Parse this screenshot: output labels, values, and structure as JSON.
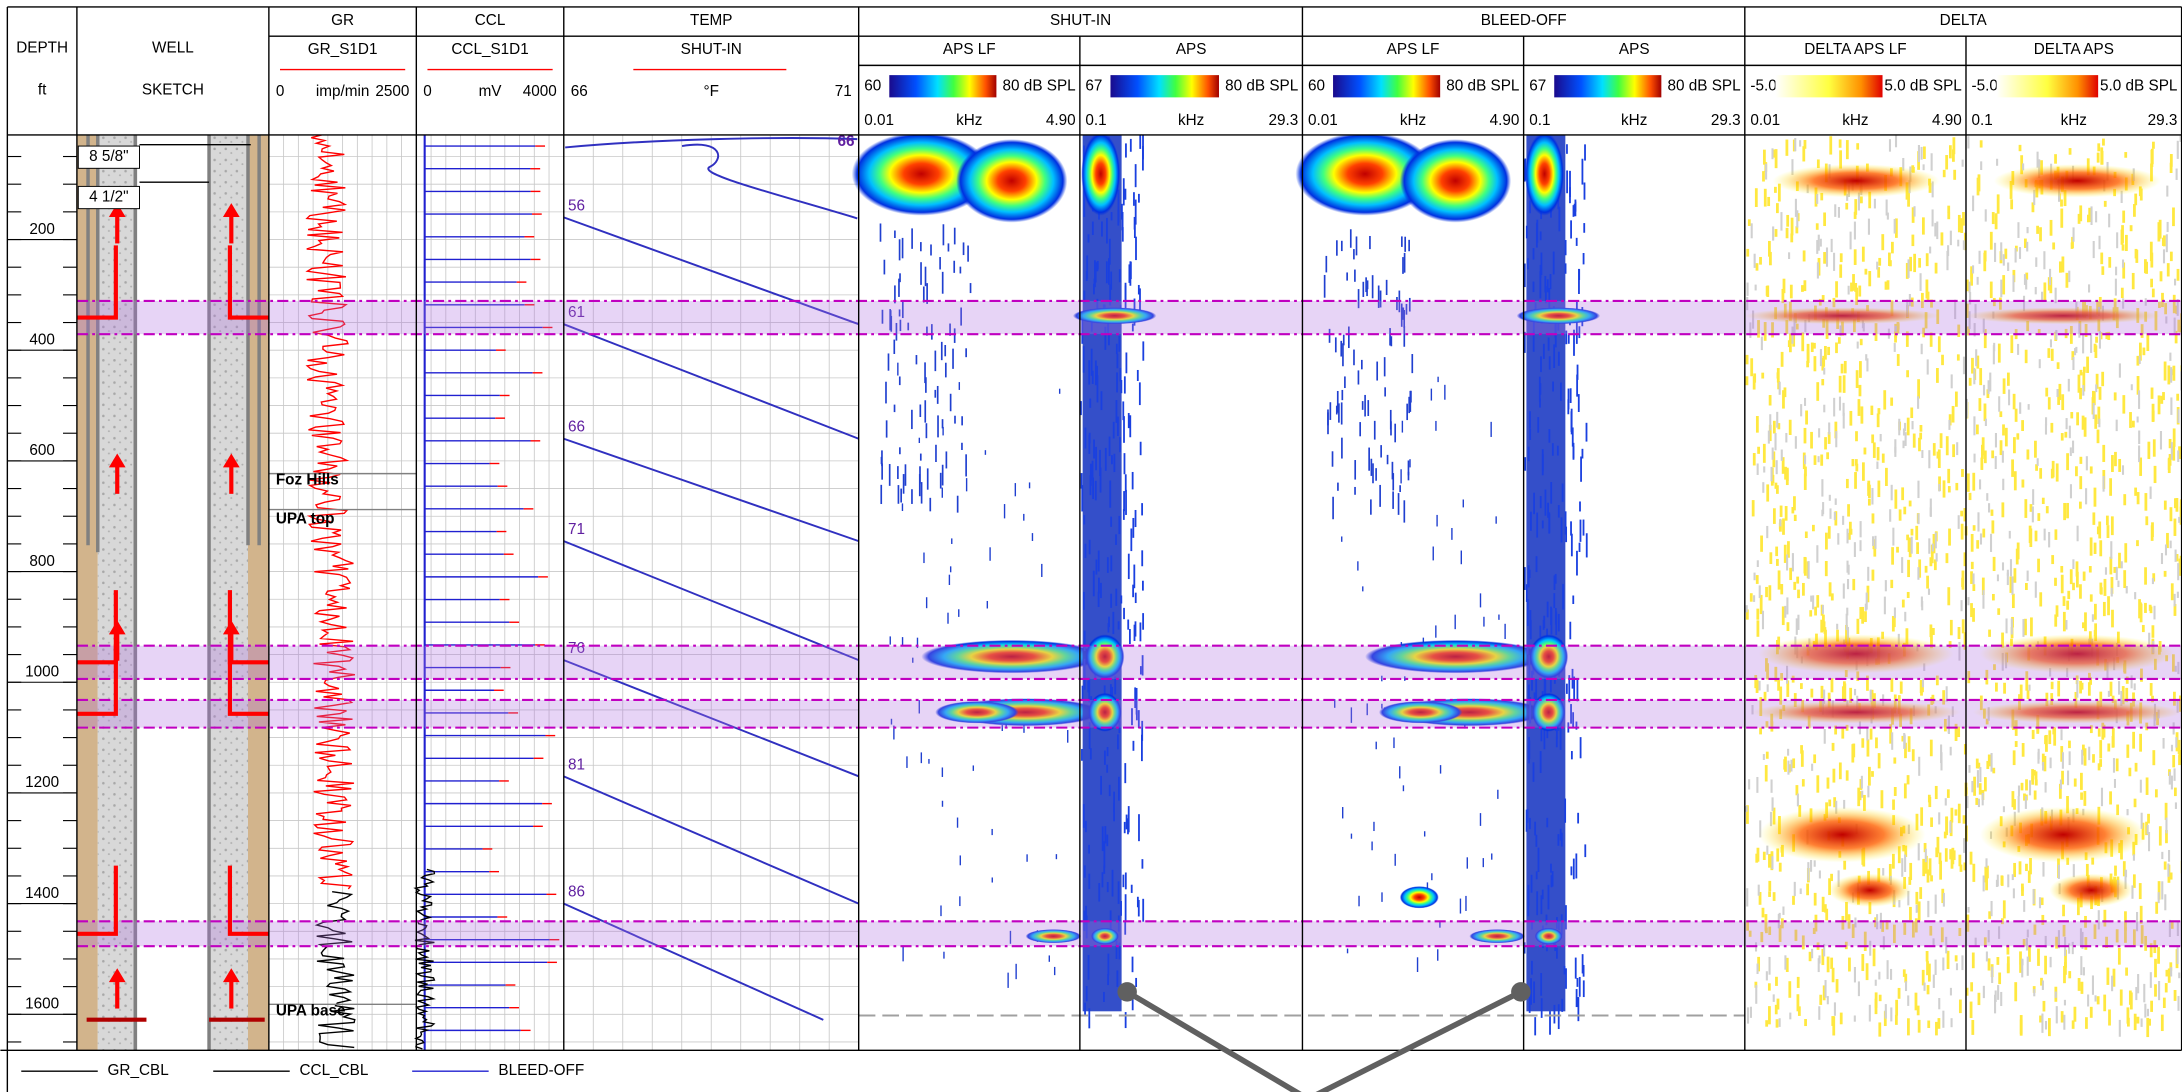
{
  "depth_header": {
    "title": "DEPTH",
    "unit": "ft"
  },
  "well_header": {
    "title": "WELL",
    "subtitle": "SKETCH"
  },
  "gr": {
    "title": "GR",
    "curve": "GR_S1D1",
    "min": "0",
    "unit": "imp/min",
    "max": "2500"
  },
  "ccl": {
    "title": "CCL",
    "curve": "CCL_S1D1",
    "min": "0",
    "unit": "mV",
    "max": "4000"
  },
  "temp": {
    "title": "TEMP",
    "curve": "SHUT-IN",
    "xlim": [
      66,
      71
    ],
    "unit": "°F",
    "top_label": "66",
    "profile": {
      "depth": [
        160,
        353,
        560,
        745,
        960,
        1170,
        1400,
        1610
      ],
      "temp": [
        56,
        61,
        66,
        71,
        76,
        81,
        86,
        90.4
      ]
    }
  },
  "groups": [
    {
      "title": "SHUT-IN",
      "panels": [
        {
          "title": "APS LF",
          "scale_min": "60",
          "scale_max": "80 dB SPL",
          "freq_min": "0.01",
          "freq_unit": "kHz",
          "freq_max": "4.90"
        },
        {
          "title": "APS",
          "scale_min": "67",
          "scale_max": "80 dB SPL",
          "freq_min": "0.1",
          "freq_unit": "kHz",
          "freq_max": "29.3"
        }
      ]
    },
    {
      "title": "BLEED-OFF",
      "panels": [
        {
          "title": "APS LF",
          "scale_min": "60",
          "scale_max": "80 dB SPL",
          "freq_min": "0.01",
          "freq_unit": "kHz",
          "freq_max": "4.90"
        },
        {
          "title": "APS",
          "scale_min": "67",
          "scale_max": "80 dB SPL",
          "freq_min": "0.1",
          "freq_unit": "kHz",
          "freq_max": "29.3"
        }
      ]
    },
    {
      "title": "DELTA",
      "panels": [
        {
          "title": "DELTA APS LF",
          "scale_min": "-5.0",
          "scale_max": "5.0 dB SPL",
          "freq_min": "0.01",
          "freq_unit": "kHz",
          "freq_max": "4.90"
        },
        {
          "title": "DELTA APS",
          "scale_min": "-5.0",
          "scale_max": "5.0 dB SPL",
          "freq_min": "0.1",
          "freq_unit": "kHz",
          "freq_max": "29.3"
        }
      ]
    }
  ],
  "depth_axis": {
    "ylim": [
      11,
      1665
    ],
    "ticks": [
      200,
      400,
      600,
      800,
      1000,
      1200,
      1400,
      1600
    ]
  },
  "casing": [
    "8 5/8\"",
    "4 1/2\""
  ],
  "formations": [
    {
      "label": "Foz Hills",
      "depth": 623
    },
    {
      "label": "UPA top",
      "depth": 688
    },
    {
      "label": "UPA base",
      "depth": 1582
    }
  ],
  "flow_zones": [
    [
      311,
      371
    ],
    [
      934,
      994
    ],
    [
      1032,
      1082
    ],
    [
      1432,
      1477
    ]
  ],
  "legend": [
    "GR_CBL",
    "CCL_CBL",
    "BLEED-OFF"
  ]
}
